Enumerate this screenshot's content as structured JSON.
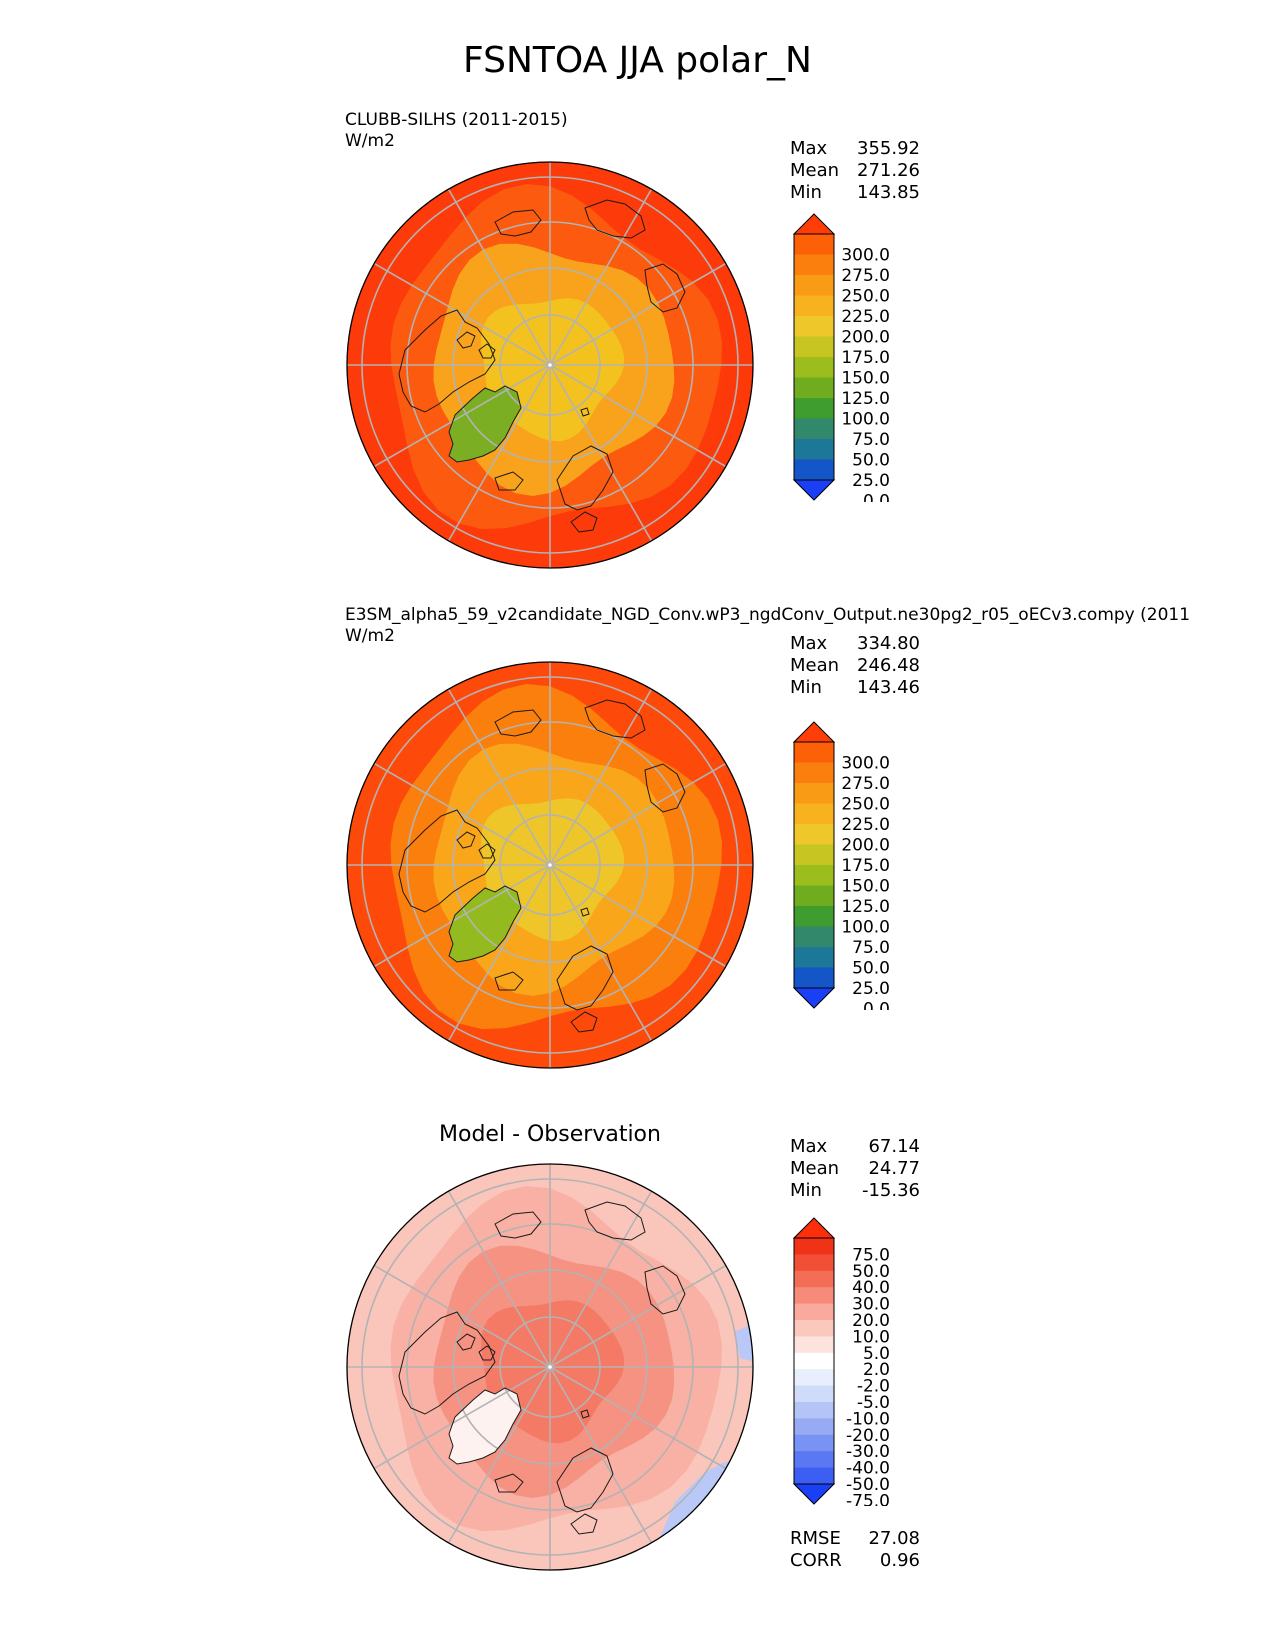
{
  "figure": {
    "title": "FSNTOA JJA polar_N"
  },
  "panels": [
    {
      "name": "test",
      "title": "CLUBB-SILHS (2011-2015)",
      "units": "W/m2",
      "stats": [
        {
          "label": "Max",
          "value": "355.92"
        },
        {
          "label": "Mean",
          "value": "271.26"
        },
        {
          "label": "Min",
          "value": "143.85"
        }
      ],
      "colorbar": {
        "ticks": [
          "300.0",
          "275.0",
          "250.0",
          "225.0",
          "200.0",
          "175.0",
          "150.0",
          "125.0",
          "100.0",
          "75.0",
          "50.0",
          "25.0",
          "0.0"
        ],
        "colors": [
          "#1b3ff5",
          "#1456c8",
          "#1c7799",
          "#31886b",
          "#3f9c2e",
          "#6fad1e",
          "#9bbd1e",
          "#c7c522",
          "#eec82a",
          "#f8b21f",
          "#f99b14",
          "#fb7f0c",
          "#fd6108",
          "#fe3d08"
        ]
      },
      "shading": {
        "pole": "#f3c21e",
        "mid": "#f9a31c",
        "edge": "#fb5a0f",
        "rim": "#fd3a0a",
        "greenland": "#7cae24"
      }
    },
    {
      "name": "reference",
      "title": "E3SM_alpha5_59_v2candidate_NGD_Conv.wP3_ngdConv_Output.ne30pg2_r05_oECv3.compy (2011",
      "units": "W/m2",
      "stats": [
        {
          "label": "Max",
          "value": "334.80"
        },
        {
          "label": "Mean",
          "value": "246.48"
        },
        {
          "label": "Min",
          "value": "143.46"
        }
      ],
      "colorbar": {
        "ticks": [
          "300.0",
          "275.0",
          "250.0",
          "225.0",
          "200.0",
          "175.0",
          "150.0",
          "125.0",
          "100.0",
          "75.0",
          "50.0",
          "25.0",
          "0.0"
        ],
        "colors": [
          "#1b3ff5",
          "#1456c8",
          "#1c7799",
          "#31886b",
          "#3f9c2e",
          "#6fad1e",
          "#9bbd1e",
          "#c7c522",
          "#eec82a",
          "#f8b21f",
          "#f99b14",
          "#fb7f0c",
          "#fd6108",
          "#fe3d08"
        ]
      },
      "shading": {
        "pole": "#eec62a",
        "mid": "#f9a61a",
        "edge": "#fb7f0c",
        "rim": "#fd4a0a",
        "greenland": "#93bb20"
      }
    },
    {
      "name": "difference",
      "title": "Model - Observation",
      "stats": [
        {
          "label": "Max",
          "value": "67.14"
        },
        {
          "label": "Mean",
          "value": "24.77"
        },
        {
          "label": "Min",
          "value": "-15.36"
        }
      ],
      "colorbar": {
        "ticks": [
          "75.0",
          "50.0",
          "40.0",
          "30.0",
          "20.0",
          "10.0",
          "5.0",
          "2.0",
          "-2.0",
          "-5.0",
          "-10.0",
          "-20.0",
          "-30.0",
          "-40.0",
          "-50.0",
          "-75.0"
        ],
        "colors": [
          "#1b3ff5",
          "#3d5ef2",
          "#5a78f1",
          "#7893f3",
          "#97abf5",
          "#b4c4f7",
          "#d0dbf9",
          "#e8eefc",
          "#ffffff",
          "#fde3de",
          "#fbc8be",
          "#f9aa9c",
          "#f68b7a",
          "#f46d57",
          "#f24f37",
          "#f03217",
          "#fd2e0a"
        ]
      },
      "shading": {
        "pole": "#f47a66",
        "mid": "#f59282",
        "edge": "#f8b1a4",
        "rim": "#fac6bb",
        "greenland": "#fdf2ef",
        "negative": "#b9c8f7"
      },
      "footer": [
        {
          "label": "RMSE",
          "value": "27.08"
        },
        {
          "label": "CORR",
          "value": "0.96"
        }
      ]
    }
  ]
}
